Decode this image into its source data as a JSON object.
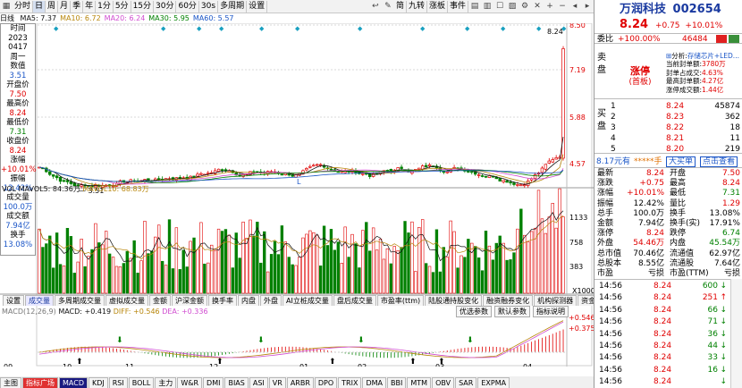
{
  "toolbar": {
    "items": [
      "分时",
      "日",
      "周",
      "月",
      "季",
      "年",
      "1分",
      "5分",
      "15分",
      "30分",
      "60分",
      "30s",
      "多周期",
      "设置"
    ],
    "tools": [
      "简",
      "九转",
      "涨板",
      "事件"
    ],
    "active": "日"
  },
  "ma_line": {
    "prefix": "日线",
    "items": [
      {
        "label": "MA5: 7.37",
        "color": "#111111"
      },
      {
        "label": "MA10: 6.72",
        "color": "#b8860b"
      },
      {
        "label": "MA20: 6.24",
        "color": "#d04cd0"
      },
      {
        "label": "MA30: 5.95",
        "color": "#008000"
      },
      {
        "label": "MA60: 5.57",
        "color": "#1a55c7"
      }
    ]
  },
  "info_panel": {
    "time_label": "时间",
    "year": "2023",
    "date": "0417",
    "weekday": "周一",
    "value_label": "数值",
    "value": "3.51",
    "open_label": "开盘价",
    "open": "7.50",
    "high_label": "最高价",
    "high": "8.24",
    "low_label": "最低价",
    "low": "7.31",
    "close_label": "收盘价",
    "close": "8.24",
    "change_label": "涨幅",
    "change": "+10.01%",
    "amplitude_label": "振幅",
    "amplitude": "12.42%",
    "volume_label": "成交量",
    "volume": "100.0万",
    "amount_label": "成交额",
    "amount": "7.94亿",
    "turnover_label": "换手",
    "turnover": "13.08%"
  },
  "price_axis": {
    "labels": [
      "8.50",
      "7.19",
      "5.88",
      "4.57"
    ]
  },
  "chart_annotations": {
    "high": "8.24",
    "low": "3.51",
    "marker": "L"
  },
  "vol_line": {
    "label": "VOL",
    "mavol5": "MAVOL5: 84.36万",
    "mavol10": "MAVOL10: 68.83万",
    "axis": [
      "1133",
      "758",
      "383"
    ],
    "unit": "X1000"
  },
  "tabs_mid": [
    "设置",
    "成交量",
    "多周期成交量",
    "虚拟成交量",
    "金额",
    "沪深金额",
    "换手率",
    "内盘",
    "外盘",
    "AI立桩成交量",
    "盘后成交量",
    "市盈率(ttm)",
    "陆股通持股变化",
    "融资融券变化",
    "机构探测器",
    "资金动向"
  ],
  "tabs_mid_active": "成交量",
  "macd_line": {
    "label": "MACD(12,26,9)",
    "macd": "MACD: +0.419",
    "diff": "DIFF: +0.546",
    "dea": "DEA: +0.336",
    "buttons": [
      "优选参数",
      "默认参数",
      "指标说明"
    ],
    "axis": [
      "+0.546",
      "+0.375"
    ]
  },
  "date_axis": [
    "09",
    "10",
    "11",
    "12",
    "01",
    "02",
    "03",
    "04"
  ],
  "tabs_bottom": [
    "主图",
    "指标广场",
    "MACD",
    "KDJ",
    "RSI",
    "BOLL",
    "主力",
    "W&R",
    "DMI",
    "BIAS",
    "ASI",
    "VR",
    "ARBR",
    "DPO",
    "TRIX",
    "DMA",
    "BBI",
    "MTM",
    "OBV",
    "SAR",
    "EXPMA"
  ],
  "tabs_bottom_active": "MACD",
  "quote": {
    "name": "万润科技",
    "code": "002654",
    "price": "8.24",
    "change": "+0.75",
    "pct": "+10.01%",
    "webi_label": "委比",
    "webi": "+100.00%",
    "webi_diff": "46484",
    "sell_label": "卖盘",
    "limit_title": "涨停",
    "limit_sub": "(首板)",
    "analysis_label": "分析:",
    "analysis_value": "存储芯片+LED...",
    "seal_label": "当前封单额:",
    "seal_value": "3780万",
    "seal_ratio_label": "封单占成交:",
    "seal_ratio": "4.63%",
    "max_seal_label": "最高封单额:",
    "max_seal": "4.27亿",
    "limit_amount_label": "涨停成交额:",
    "limit_amount": "1.44亿",
    "buy_label": "买盘",
    "bids": [
      {
        "level": "1",
        "price": "8.24",
        "vol": "45874"
      },
      {
        "level": "2",
        "price": "8.23",
        "vol": "362"
      },
      {
        "level": "3",
        "price": "8.22",
        "vol": "18"
      },
      {
        "level": "4",
        "price": "8.21",
        "vol": "11"
      },
      {
        "level": "5",
        "price": "8.20",
        "vol": "219"
      }
    ],
    "tape_left": "8.17元有",
    "tape_mid": "*****手",
    "tape_btn1": "大买单",
    "tape_btn2": "点击查看",
    "stats": [
      {
        "l1": "最新",
        "v1": "8.24",
        "c1": "red",
        "l2": "开盘",
        "v2": "7.50",
        "c2": "red"
      },
      {
        "l1": "涨跌",
        "v1": "+0.75",
        "c1": "red",
        "l2": "最高",
        "v2": "8.24",
        "c2": "red"
      },
      {
        "l1": "涨幅",
        "v1": "+10.01%",
        "c1": "red",
        "l2": "最低",
        "v2": "7.31",
        "c2": "grn"
      },
      {
        "l1": "振幅",
        "v1": "12.42%",
        "c1": "",
        "l2": "量比",
        "v2": "1.29",
        "c2": "red"
      },
      {
        "l1": "总手",
        "v1": "100.0万",
        "c1": "",
        "l2": "换手",
        "v2": "13.08%",
        "c2": ""
      },
      {
        "l1": "金额",
        "v1": "7.94亿",
        "c1": "",
        "l2": "换手(实)",
        "v2": "17.91%",
        "c2": ""
      },
      {
        "l1": "涨停",
        "v1": "8.24",
        "c1": "red",
        "l2": "跌停",
        "v2": "6.74",
        "c2": "grn"
      },
      {
        "l1": "外盘",
        "v1": "54.46万",
        "c1": "red",
        "l2": "内盘",
        "v2": "45.54万",
        "c2": "grn"
      },
      {
        "l1": "总市值",
        "v1": "70.46亿",
        "c1": "",
        "l2": "流通值",
        "v2": "62.97亿",
        "c2": ""
      },
      {
        "l1": "总股本",
        "v1": "8.55亿",
        "c1": "",
        "l2": "流通股",
        "v2": "7.64亿",
        "c2": ""
      },
      {
        "l1": "市盈",
        "v1": "亏损",
        "c1": "",
        "l2": "市盈(TTM)",
        "v2": "亏损",
        "c2": ""
      }
    ],
    "ticks": [
      {
        "time": "14:56",
        "price": "8.24",
        "vol": "600",
        "dir": "↓"
      },
      {
        "time": "14:56",
        "price": "8.24",
        "vol": "251",
        "dir": "↑"
      },
      {
        "time": "14:56",
        "price": "8.24",
        "vol": "66",
        "dir": "↓"
      },
      {
        "time": "14:56",
        "price": "8.24",
        "vol": "71",
        "dir": "↓"
      },
      {
        "time": "14:56",
        "price": "8.24",
        "vol": "36",
        "dir": "↓"
      },
      {
        "time": "14:56",
        "price": "8.24",
        "vol": "44",
        "dir": "↓"
      },
      {
        "time": "14:56",
        "price": "8.24",
        "vol": "33",
        "dir": "↓"
      },
      {
        "time": "14:56",
        "price": "8.24",
        "vol": "16",
        "dir": "↓"
      },
      {
        "time": "14:56",
        "price": "8.24",
        "vol": "",
        "dir": "↓"
      }
    ]
  }
}
